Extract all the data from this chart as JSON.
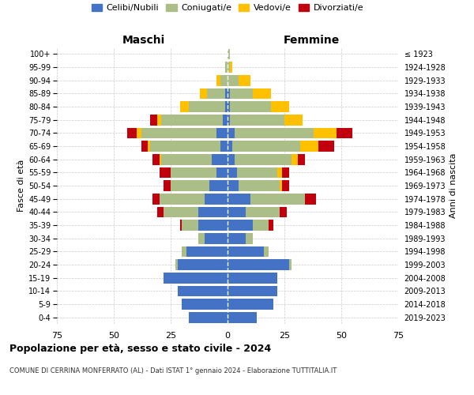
{
  "age_groups": [
    "0-4",
    "5-9",
    "10-14",
    "15-19",
    "20-24",
    "25-29",
    "30-34",
    "35-39",
    "40-44",
    "45-49",
    "50-54",
    "55-59",
    "60-64",
    "65-69",
    "70-74",
    "75-79",
    "80-84",
    "85-89",
    "90-94",
    "95-99",
    "100+"
  ],
  "birth_years": [
    "2019-2023",
    "2014-2018",
    "2009-2013",
    "2004-2008",
    "1999-2003",
    "1994-1998",
    "1989-1993",
    "1984-1988",
    "1979-1983",
    "1974-1978",
    "1969-1973",
    "1964-1968",
    "1959-1963",
    "1954-1958",
    "1949-1953",
    "1944-1948",
    "1939-1943",
    "1934-1938",
    "1929-1933",
    "1924-1928",
    "≤ 1923"
  ],
  "colors": {
    "celibe": "#4472C4",
    "coniugato": "#ABBE88",
    "vedovo": "#FFC000",
    "divorziato": "#C0000C"
  },
  "maschi": {
    "celibe": [
      17,
      20,
      22,
      28,
      22,
      18,
      10,
      13,
      13,
      10,
      8,
      5,
      7,
      3,
      5,
      2,
      1,
      1,
      0,
      0,
      0
    ],
    "coniugato": [
      0,
      0,
      0,
      0,
      1,
      2,
      3,
      7,
      15,
      20,
      17,
      20,
      22,
      31,
      33,
      27,
      16,
      8,
      3,
      1,
      0
    ],
    "vedovo": [
      0,
      0,
      0,
      0,
      0,
      0,
      0,
      0,
      0,
      0,
      0,
      0,
      1,
      1,
      2,
      2,
      4,
      3,
      2,
      0,
      0
    ],
    "divorziato": [
      0,
      0,
      0,
      0,
      0,
      0,
      0,
      1,
      3,
      3,
      3,
      5,
      3,
      3,
      4,
      3,
      0,
      0,
      0,
      0,
      0
    ]
  },
  "femmine": {
    "nubile": [
      13,
      20,
      22,
      22,
      27,
      16,
      8,
      11,
      8,
      10,
      5,
      4,
      3,
      2,
      3,
      1,
      1,
      1,
      0,
      0,
      0
    ],
    "coniugata": [
      0,
      0,
      0,
      0,
      1,
      2,
      3,
      7,
      15,
      24,
      18,
      18,
      25,
      30,
      35,
      24,
      18,
      10,
      5,
      1,
      1
    ],
    "vedova": [
      0,
      0,
      0,
      0,
      0,
      0,
      0,
      0,
      0,
      0,
      1,
      2,
      3,
      8,
      10,
      8,
      8,
      8,
      5,
      1,
      0
    ],
    "divorziata": [
      0,
      0,
      0,
      0,
      0,
      0,
      0,
      2,
      3,
      5,
      3,
      3,
      3,
      7,
      7,
      0,
      0,
      0,
      0,
      0,
      0
    ]
  },
  "title": "Popolazione per età, sesso e stato civile - 2024",
  "subtitle": "COMUNE DI CERRINA MONFERRATO (AL) - Dati ISTAT 1° gennaio 2024 - Elaborazione TUTTITALIA.IT",
  "xlabel_left": "Maschi",
  "xlabel_right": "Femmine",
  "ylabel_left": "Fasce di età",
  "ylabel_right": "Anni di nascita",
  "xlim": 75,
  "legend_labels": [
    "Celibi/Nubili",
    "Coniugati/e",
    "Vedovi/e",
    "Divorziati/e"
  ],
  "background_color": "#ffffff",
  "grid_color": "#cccccc"
}
